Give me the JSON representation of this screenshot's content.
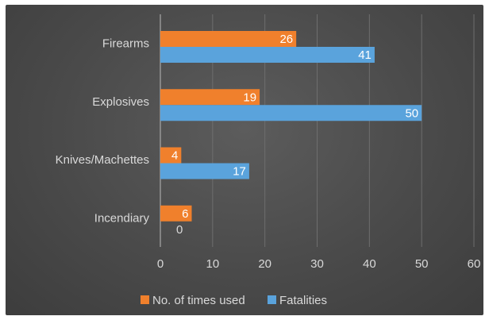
{
  "chart_data": {
    "type": "bar",
    "orientation": "horizontal",
    "title": "",
    "xlabel": "",
    "ylabel": "",
    "categories": [
      "Firearms",
      "Explosives",
      "Knives/Machettes",
      "Incendiary"
    ],
    "series": [
      {
        "name": "No. of times used",
        "values": [
          26,
          19,
          4,
          6
        ],
        "color": "#f0802c"
      },
      {
        "name": "Fatalities",
        "values": [
          41,
          50,
          17,
          0
        ],
        "color": "#5aa3dc"
      }
    ],
    "xlim": [
      0,
      60
    ],
    "xticks": [
      0,
      10,
      20,
      30,
      40,
      50,
      60
    ],
    "grid": true,
    "legend_position": "bottom",
    "data_labels": true
  },
  "colors": {
    "background": "#4a4a4a",
    "gridline": "#6e6e6e",
    "axis_text": "#d9d9d9",
    "label_text": "#ffffff"
  }
}
